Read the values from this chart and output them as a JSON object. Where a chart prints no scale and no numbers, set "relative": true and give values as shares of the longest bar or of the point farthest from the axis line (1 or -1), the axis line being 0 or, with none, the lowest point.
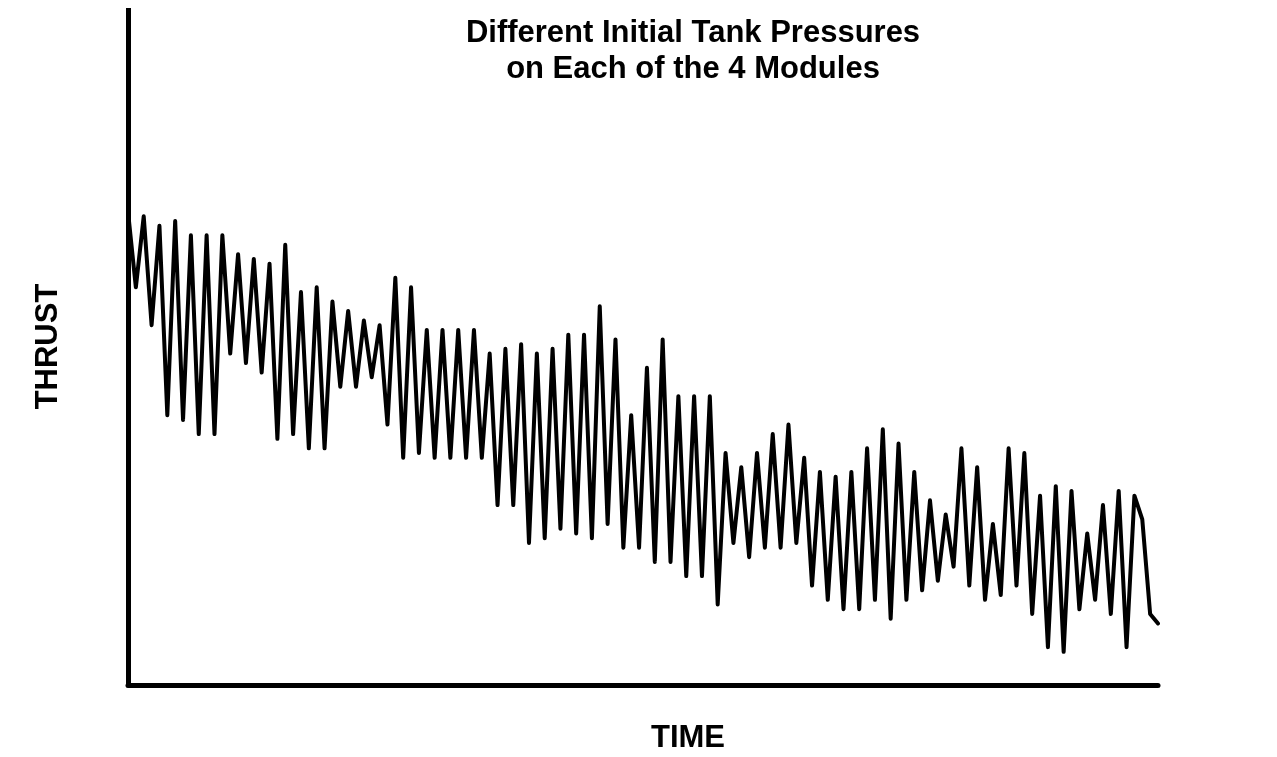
{
  "chart_data": {
    "type": "line",
    "title": "Different Initial Tank Pressures\non Each of the 4 Modules",
    "xlabel": "TIME",
    "ylabel": "THRUST",
    "relative": true,
    "line_style": "solid",
    "categories": [
      null,
      null,
      null,
      null,
      null,
      null,
      null,
      null,
      null,
      null,
      null,
      null,
      null,
      null,
      null,
      null,
      null,
      null,
      null,
      null,
      null,
      null,
      null,
      null,
      null,
      null,
      null,
      null,
      null,
      null,
      null,
      null,
      null,
      null,
      null,
      null,
      null,
      null,
      null,
      null,
      null,
      null,
      null,
      null,
      null,
      null,
      null,
      null,
      null,
      null,
      null,
      null,
      null,
      null,
      null,
      null,
      null,
      null,
      null,
      null,
      null,
      null,
      null,
      null,
      null,
      null,
      null,
      null,
      null,
      null,
      null,
      null,
      null,
      null,
      null,
      null,
      null,
      null,
      null,
      null,
      null,
      null,
      null,
      null,
      null,
      null,
      null,
      null,
      null,
      null,
      null,
      null,
      null,
      null,
      null,
      null,
      null,
      null,
      null,
      null,
      null,
      null,
      null,
      null,
      null,
      null,
      null,
      null,
      null,
      null,
      null,
      null,
      null,
      null,
      null,
      null,
      null,
      null,
      null,
      null,
      null,
      null,
      null,
      null,
      null,
      null,
      null,
      null,
      null,
      null,
      null,
      null
    ],
    "series": [
      {
        "color": "#000000",
        "values": [
          1.0,
          0.84,
          0.99,
          0.76,
          0.97,
          0.57,
          0.98,
          0.56,
          0.95,
          0.53,
          0.95,
          0.53,
          0.95,
          0.7,
          0.91,
          0.68,
          0.9,
          0.66,
          0.89,
          0.52,
          0.93,
          0.53,
          0.83,
          0.5,
          0.84,
          0.5,
          0.81,
          0.63,
          0.79,
          0.63,
          0.77,
          0.65,
          0.76,
          0.55,
          0.86,
          0.48,
          0.84,
          0.49,
          0.75,
          0.48,
          0.75,
          0.48,
          0.75,
          0.48,
          0.75,
          0.48,
          0.7,
          0.38,
          0.71,
          0.38,
          0.72,
          0.3,
          0.7,
          0.31,
          0.71,
          0.33,
          0.74,
          0.32,
          0.74,
          0.31,
          0.8,
          0.34,
          0.73,
          0.29,
          0.57,
          0.29,
          0.67,
          0.26,
          0.73,
          0.26,
          0.61,
          0.23,
          0.61,
          0.23,
          0.61,
          0.17,
          0.49,
          0.3,
          0.46,
          0.27,
          0.49,
          0.29,
          0.53,
          0.29,
          0.55,
          0.3,
          0.48,
          0.21,
          0.45,
          0.18,
          0.44,
          0.16,
          0.45,
          0.16,
          0.5,
          0.18,
          0.54,
          0.14,
          0.51,
          0.18,
          0.45,
          0.2,
          0.39,
          0.22,
          0.36,
          0.25,
          0.5,
          0.21,
          0.46,
          0.18,
          0.34,
          0.19,
          0.5,
          0.21,
          0.49,
          0.15,
          0.4,
          0.08,
          0.42,
          0.07,
          0.41,
          0.16,
          0.32,
          0.18,
          0.38,
          0.15,
          0.41,
          0.08,
          0.4,
          0.35,
          0.15,
          0.13
        ]
      }
    ]
  }
}
